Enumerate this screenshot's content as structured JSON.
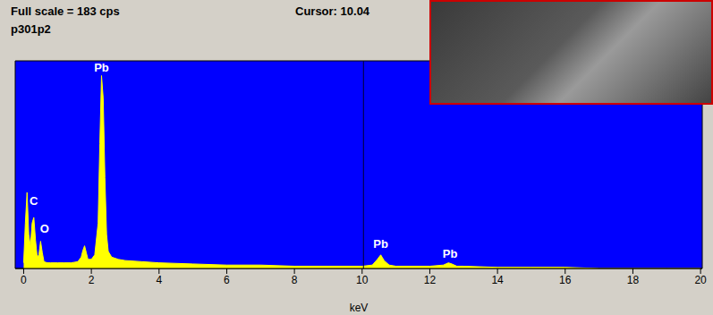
{
  "chart_data": {
    "type": "area",
    "title": "Full scale = 183 cps",
    "subtitle": "p301p2",
    "x_label": "keV",
    "x": [
      0,
      0.05,
      0.1,
      0.15,
      0.2,
      0.25,
      0.3,
      0.35,
      0.4,
      0.45,
      0.5,
      0.55,
      0.6,
      0.7,
      0.8,
      1.0,
      1.2,
      1.4,
      1.6,
      1.7,
      1.75,
      1.8,
      1.85,
      1.9,
      2.0,
      2.1,
      2.2,
      2.25,
      2.3,
      2.35,
      2.4,
      2.45,
      2.5,
      2.6,
      2.8,
      3.0,
      3.5,
      4.0,
      5,
      6,
      7,
      8,
      9,
      10,
      10.3,
      10.45,
      10.55,
      10.65,
      10.8,
      11,
      12,
      12.4,
      12.55,
      12.65,
      12.8,
      13,
      14,
      15,
      16,
      17,
      18,
      19,
      20
    ],
    "values": [
      5,
      40,
      67,
      30,
      20,
      40,
      45,
      25,
      10,
      12,
      24,
      14,
      6,
      5,
      5,
      5,
      5,
      5,
      6,
      10,
      16,
      20,
      14,
      8,
      8,
      12,
      40,
      110,
      170,
      150,
      80,
      30,
      15,
      10,
      8,
      7,
      6,
      5,
      4,
      3,
      3,
      2,
      2,
      2,
      3,
      8,
      12,
      7,
      3,
      2,
      2,
      3,
      5,
      4,
      2,
      2,
      1,
      1,
      1,
      0,
      0,
      0,
      0
    ],
    "color": "#ffff00",
    "xlim": [
      -0.25,
      20.05
    ],
    "xticks": [
      0,
      2,
      4,
      6,
      8,
      10,
      12,
      14,
      16,
      18,
      20
    ],
    "ylim": [
      0,
      183
    ],
    "tick_labels": "x",
    "cursor": {
      "x": 10.04,
      "label": "Cursor: 10.04"
    },
    "annotations": [
      {
        "text": "C",
        "x": 0.3,
        "y": 60
      },
      {
        "text": "O",
        "x": 0.62,
        "y": 35
      },
      {
        "text": "Pb",
        "x": 2.3,
        "y": 177
      },
      {
        "text": "Pb",
        "x": 10.55,
        "y": 22
      },
      {
        "text": "Pb",
        "x": 12.6,
        "y": 13
      }
    ]
  }
}
